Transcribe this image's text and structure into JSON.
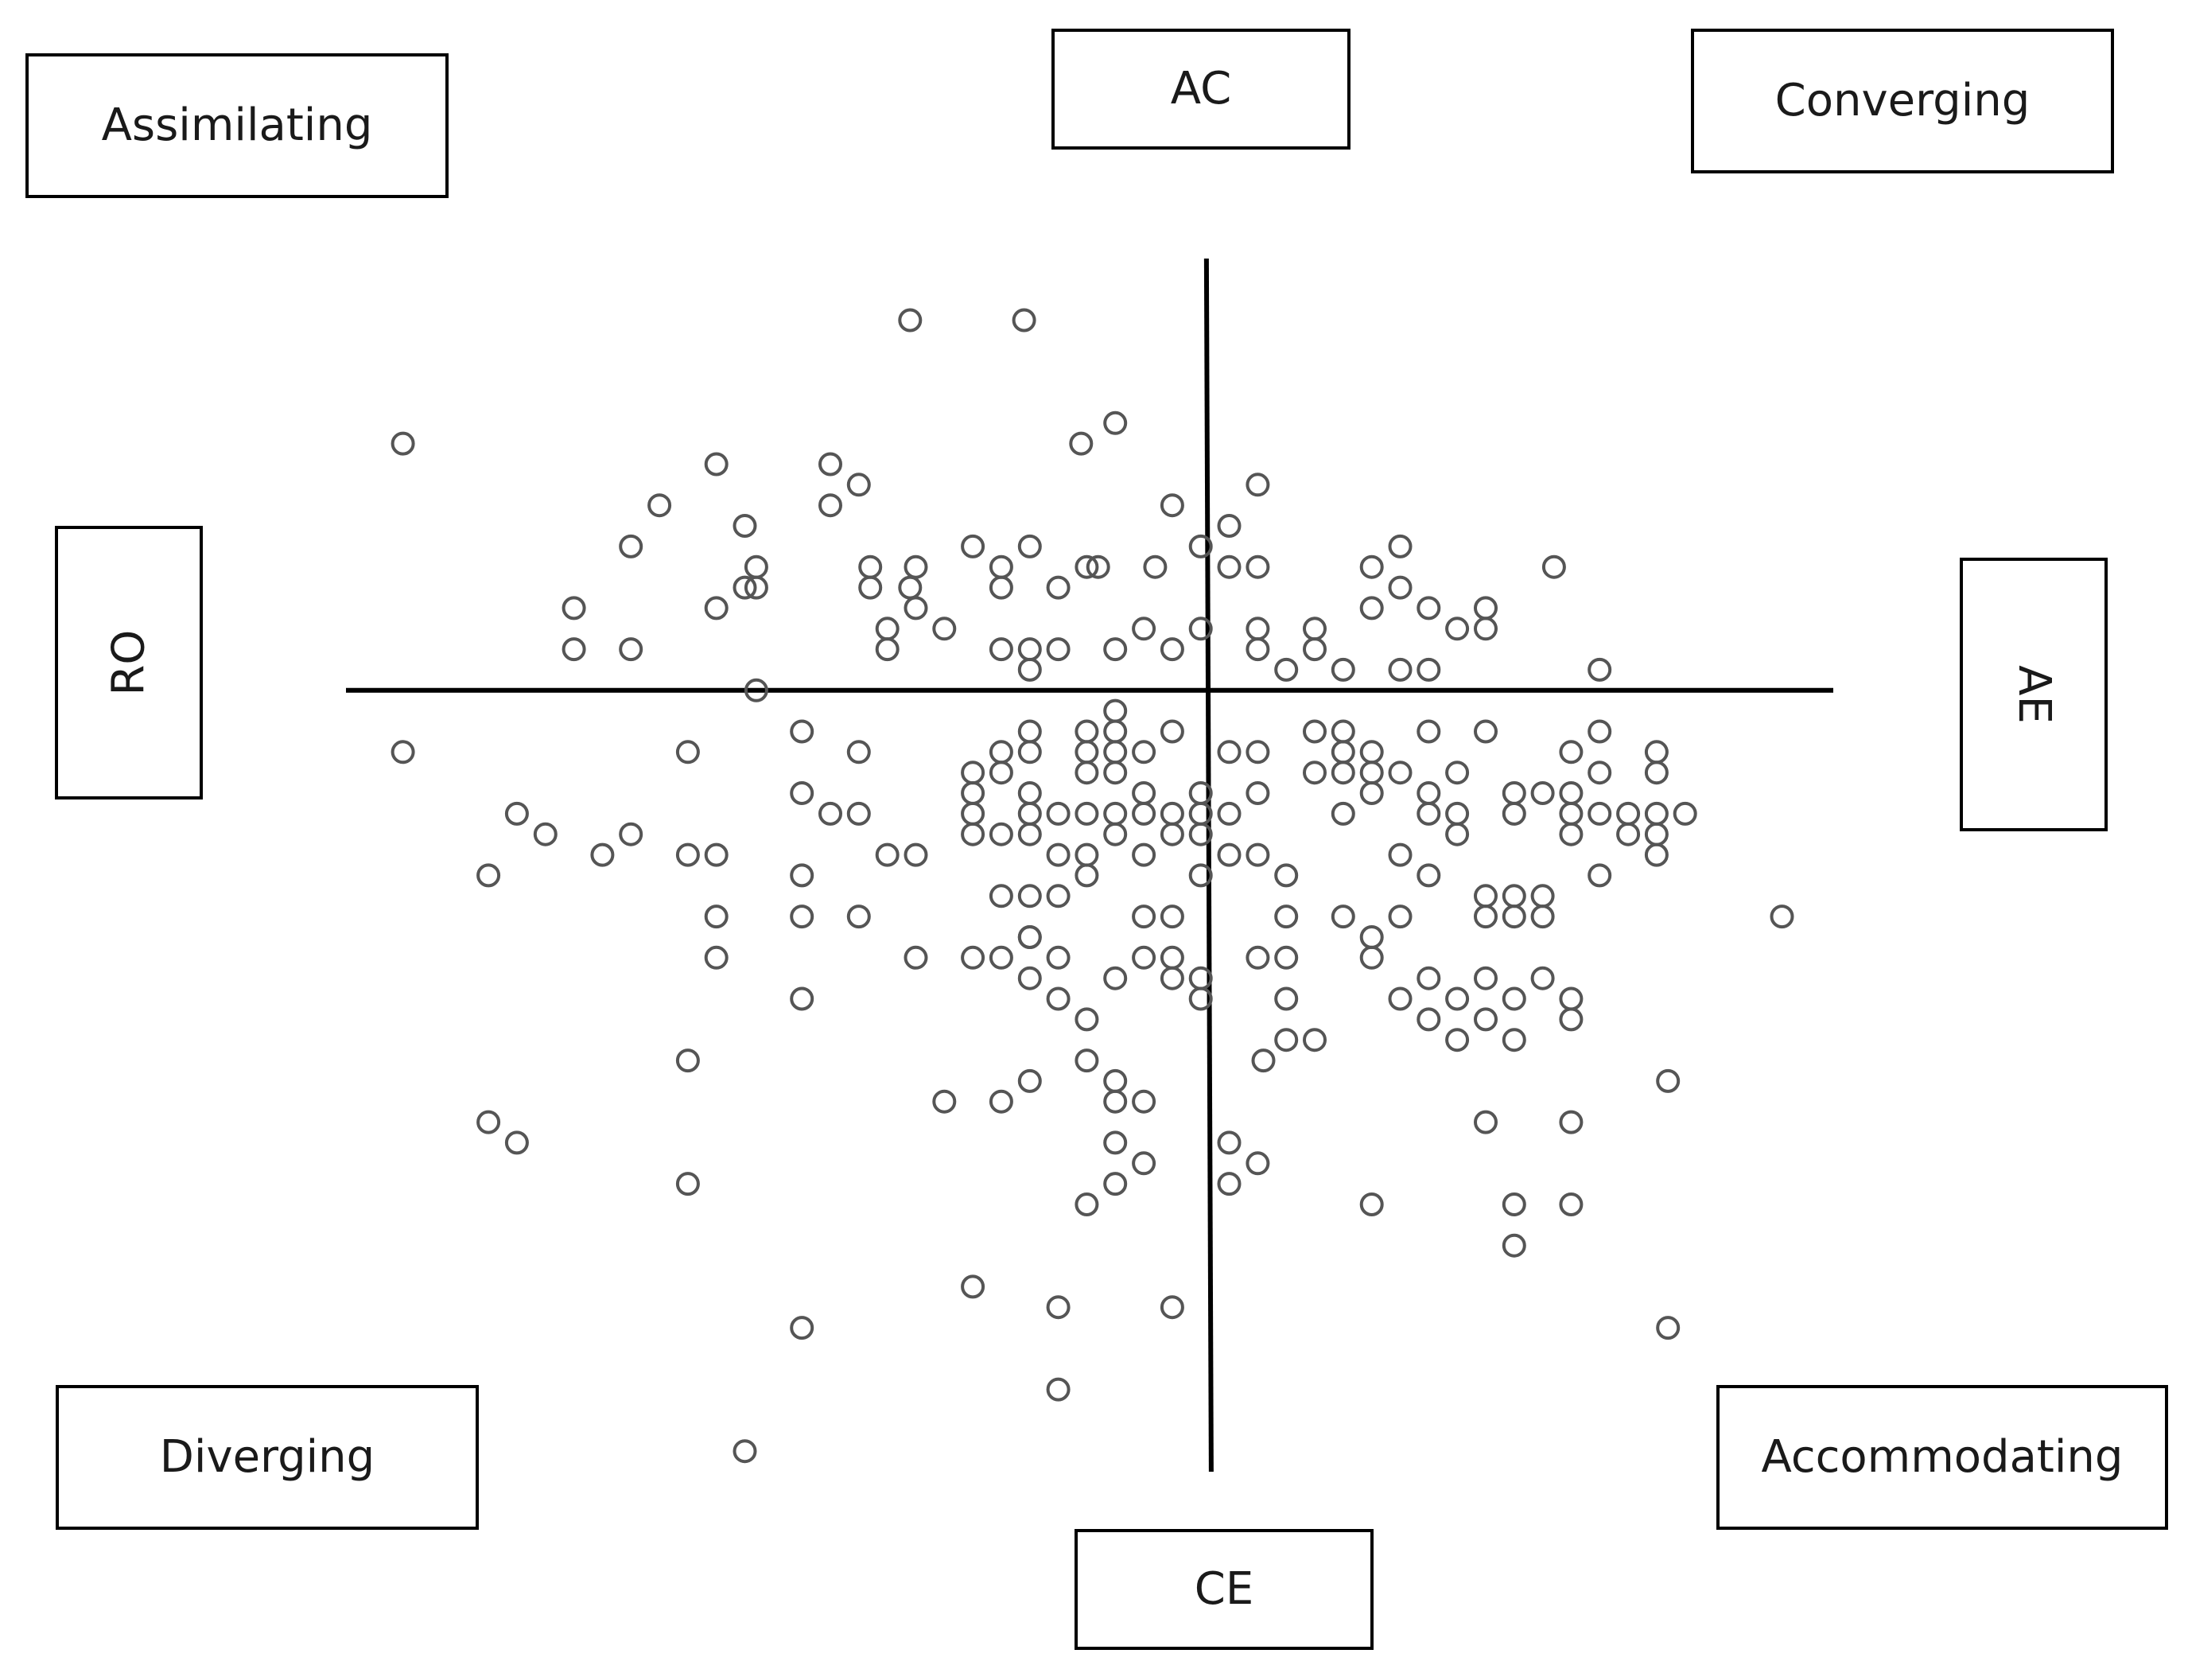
{
  "labels": {
    "ac": "AC",
    "ce": "CE",
    "ro": "RO",
    "ae": "AE",
    "assimilating": "Assimilating",
    "converging": "Converging",
    "diverging": "Diverging",
    "accommodating": "Accommodating"
  },
  "colors": {
    "axis": "#000000",
    "marker_stroke": "#555555",
    "marker_stroke_dense": "#222222",
    "text": "#1a1a1a"
  },
  "chart_data": {
    "type": "scatter",
    "title": "",
    "xlabel": "",
    "ylabel": "",
    "marker": "hollow-circle",
    "xlim": [
      -15.1,
      11
    ],
    "ylim": [
      -19,
      10.5
    ],
    "grid": false,
    "legend": "none",
    "quadrants": {
      "top-left": "Assimilating",
      "top-right": "Converging",
      "bottom-left": "Diverging",
      "bottom-right": "Accommodating"
    },
    "axis_ends": {
      "top": "AC",
      "bottom": "CE",
      "left": "RO",
      "right": "AE"
    },
    "points": [
      [
        -5.2,
        9
      ],
      [
        -3.2,
        9
      ],
      [
        -14.1,
        6
      ],
      [
        -8.6,
        5.5
      ],
      [
        -6.6,
        5.5
      ],
      [
        -2.2,
        6
      ],
      [
        -1.6,
        6.5
      ],
      [
        -0.6,
        4.5
      ],
      [
        0.9,
        5
      ],
      [
        -9.6,
        4.5
      ],
      [
        -8.1,
        4
      ],
      [
        -6.6,
        4.5
      ],
      [
        -6.1,
        5
      ],
      [
        -10.1,
        3.5
      ],
      [
        -7.9,
        3
      ],
      [
        -5.9,
        3
      ],
      [
        -5.1,
        3
      ],
      [
        -4.1,
        3.5
      ],
      [
        -3.6,
        3
      ],
      [
        -3.1,
        3.5
      ],
      [
        -1.9,
        3
      ],
      [
        -0.9,
        3
      ],
      [
        -0.1,
        3.5
      ],
      [
        0.4,
        4
      ],
      [
        0.4,
        3
      ],
      [
        -8.1,
        2.5
      ],
      [
        -7.9,
        2.5
      ],
      [
        -5.9,
        2.5
      ],
      [
        -5.2,
        2.5
      ],
      [
        -3.6,
        2.5
      ],
      [
        -2.6,
        2.5
      ],
      [
        -2.1,
        3
      ],
      [
        0.9,
        3
      ],
      [
        2.9,
        3
      ],
      [
        3.4,
        3.5
      ],
      [
        3.4,
        2.5
      ],
      [
        6.1,
        3
      ],
      [
        -11.1,
        2
      ],
      [
        -8.6,
        2
      ],
      [
        -5.1,
        2
      ],
      [
        -4.6,
        1.5
      ],
      [
        -5.6,
        1.5
      ],
      [
        1.9,
        1.5
      ],
      [
        2.9,
        2
      ],
      [
        3.9,
        2
      ],
      [
        4.4,
        1.5
      ],
      [
        4.9,
        2
      ],
      [
        4.9,
        1.5
      ],
      [
        -11.1,
        1
      ],
      [
        -10.1,
        1
      ],
      [
        -5.6,
        1
      ],
      [
        -3.6,
        1
      ],
      [
        -3.1,
        1
      ],
      [
        -2.6,
        1
      ],
      [
        -1.6,
        1
      ],
      [
        -1.1,
        1.5
      ],
      [
        -0.6,
        1
      ],
      [
        -0.1,
        1.5
      ],
      [
        0.9,
        1.5
      ],
      [
        0.9,
        1
      ],
      [
        1.4,
        0.5
      ],
      [
        1.9,
        1
      ],
      [
        2.4,
        0.5
      ],
      [
        3.4,
        0.5
      ],
      [
        3.9,
        0.5
      ],
      [
        6.9,
        0.5
      ],
      [
        -7.9,
        0
      ],
      [
        -3.1,
        0.5
      ],
      [
        -1.6,
        -0.5
      ],
      [
        -3.6,
        -1.5
      ],
      [
        -3.1,
        -1
      ],
      [
        -3.1,
        -1.5
      ],
      [
        -2.1,
        -1
      ],
      [
        -2.1,
        -1.5
      ],
      [
        -1.6,
        -1
      ],
      [
        -1.6,
        -1.5
      ],
      [
        -1.1,
        -1.5
      ],
      [
        -0.6,
        -1
      ],
      [
        0.4,
        -1.5
      ],
      [
        0.9,
        -1.5
      ],
      [
        1.9,
        -1
      ],
      [
        2.4,
        -1
      ],
      [
        2.4,
        -1.5
      ],
      [
        2.9,
        -1.5
      ],
      [
        3.9,
        -1
      ],
      [
        4.9,
        -1
      ],
      [
        6.4,
        -1.5
      ],
      [
        6.9,
        -1
      ],
      [
        -14.1,
        -1.5
      ],
      [
        -9.1,
        -1.5
      ],
      [
        -7.1,
        -1
      ],
      [
        -6.1,
        -1.5
      ],
      [
        -3.6,
        -2
      ],
      [
        -4.1,
        -2
      ],
      [
        -3.1,
        -2.5
      ],
      [
        -2.1,
        -2
      ],
      [
        -1.6,
        -2
      ],
      [
        -1.1,
        -2.5
      ],
      [
        -0.1,
        -2.5
      ],
      [
        0.9,
        -2.5
      ],
      [
        1.9,
        -2
      ],
      [
        2.4,
        -2
      ],
      [
        2.9,
        -2
      ],
      [
        3.4,
        -2
      ],
      [
        3.9,
        -2.5
      ],
      [
        4.4,
        -2
      ],
      [
        5.4,
        -2.5
      ],
      [
        5.9,
        -2.5
      ],
      [
        6.4,
        -2.5
      ],
      [
        6.9,
        -2
      ],
      [
        7.9,
        -1.5
      ],
      [
        7.9,
        -2
      ],
      [
        -12.1,
        -3
      ],
      [
        -7.1,
        -2.5
      ],
      [
        -6.1,
        -3
      ],
      [
        -6.6,
        -3
      ],
      [
        -4.1,
        -2.5
      ],
      [
        -4.1,
        -3
      ],
      [
        -3.1,
        -3
      ],
      [
        -2.6,
        -3
      ],
      [
        -2.1,
        -3
      ],
      [
        -1.6,
        -3
      ],
      [
        -1.1,
        -3
      ],
      [
        -0.6,
        -3
      ],
      [
        -0.1,
        -3
      ],
      [
        0.4,
        -3
      ],
      [
        2.9,
        -2.5
      ],
      [
        2.4,
        -3
      ],
      [
        3.9,
        -3
      ],
      [
        4.4,
        -3
      ],
      [
        5.4,
        -3
      ],
      [
        6.4,
        -3
      ],
      [
        6.9,
        -3
      ],
      [
        7.4,
        -3
      ],
      [
        7.9,
        -3
      ],
      [
        8.4,
        -3
      ],
      [
        -11.6,
        -3.5
      ],
      [
        -10.6,
        -4
      ],
      [
        -10.1,
        -3.5
      ],
      [
        -8.6,
        -4
      ],
      [
        -5.6,
        -4
      ],
      [
        -5.1,
        -4
      ],
      [
        -4.1,
        -3.5
      ],
      [
        -3.6,
        -3.5
      ],
      [
        -3.1,
        -3.5
      ],
      [
        -2.6,
        -4
      ],
      [
        -2.1,
        -4
      ],
      [
        -1.6,
        -3.5
      ],
      [
        -1.1,
        -4
      ],
      [
        -0.6,
        -3.5
      ],
      [
        -0.1,
        -3.5
      ],
      [
        0.4,
        -4
      ],
      [
        0.9,
        -4
      ],
      [
        3.4,
        -4
      ],
      [
        4.4,
        -3.5
      ],
      [
        6.4,
        -3.5
      ],
      [
        7.4,
        -3.5
      ],
      [
        7.9,
        -4
      ],
      [
        7.9,
        -3.5
      ],
      [
        -12.6,
        -4.5
      ],
      [
        -9.1,
        -4
      ],
      [
        -7.1,
        -4.5
      ],
      [
        -3.1,
        -5
      ],
      [
        -2.6,
        -5
      ],
      [
        -2.1,
        -4.5
      ],
      [
        -0.1,
        -4.5
      ],
      [
        1.4,
        -4.5
      ],
      [
        3.9,
        -4.5
      ],
      [
        4.9,
        -5
      ],
      [
        5.4,
        -5
      ],
      [
        5.9,
        -5
      ],
      [
        6.9,
        -4.5
      ],
      [
        -8.6,
        -5.5
      ],
      [
        -7.1,
        -5.5
      ],
      [
        -6.1,
        -5.5
      ],
      [
        -3.1,
        -6
      ],
      [
        -3.6,
        -5
      ],
      [
        -1.1,
        -5.5
      ],
      [
        -0.6,
        -5.5
      ],
      [
        1.4,
        -5.5
      ],
      [
        2.4,
        -5.5
      ],
      [
        2.9,
        -6
      ],
      [
        3.4,
        -5.5
      ],
      [
        4.9,
        -5.5
      ],
      [
        5.4,
        -5.5
      ],
      [
        5.9,
        -5.5
      ],
      [
        10.1,
        -5.5
      ],
      [
        -8.6,
        -6.5
      ],
      [
        -5.1,
        -6.5
      ],
      [
        -4.1,
        -6.5
      ],
      [
        -3.1,
        -6
      ],
      [
        -3.6,
        -6.5
      ],
      [
        -2.6,
        -6.5
      ],
      [
        -1.6,
        -7
      ],
      [
        -1.1,
        -6.5
      ],
      [
        -0.6,
        -6.5
      ],
      [
        -0.1,
        -7
      ],
      [
        0.9,
        -6.5
      ],
      [
        1.4,
        -6.5
      ],
      [
        2.9,
        -6.5
      ],
      [
        -7.1,
        -7.5
      ],
      [
        -3.1,
        -7
      ],
      [
        -2.6,
        -7.5
      ],
      [
        -2.1,
        -8
      ],
      [
        -0.6,
        -7
      ],
      [
        -0.1,
        -7.5
      ],
      [
        1.4,
        -7.5
      ],
      [
        3.4,
        -7.5
      ],
      [
        3.9,
        -7
      ],
      [
        4.4,
        -7.5
      ],
      [
        4.9,
        -7
      ],
      [
        5.4,
        -7.5
      ],
      [
        5.9,
        -7
      ],
      [
        6.4,
        -7.5
      ],
      [
        6.4,
        -8
      ],
      [
        1.9,
        -8.5
      ],
      [
        1.4,
        -8.5
      ],
      [
        3.9,
        -8
      ],
      [
        4.4,
        -8.5
      ],
      [
        4.9,
        -8
      ],
      [
        5.4,
        -8.5
      ],
      [
        1.0,
        -9
      ],
      [
        -9.1,
        -9
      ],
      [
        -4.6,
        -10
      ],
      [
        -3.6,
        -10
      ],
      [
        -3.1,
        -9.5
      ],
      [
        -2.1,
        -9
      ],
      [
        -1.6,
        -9.5
      ],
      [
        -1.1,
        -10
      ],
      [
        -1.6,
        -10
      ],
      [
        8.1,
        -9.5
      ],
      [
        -12.6,
        -10.5
      ],
      [
        -12.1,
        -11
      ],
      [
        -9.1,
        -12
      ],
      [
        -1.6,
        -11
      ],
      [
        -1.1,
        -11.5
      ],
      [
        -1.6,
        -12
      ],
      [
        -2.1,
        -12.5
      ],
      [
        0.4,
        -11
      ],
      [
        0.4,
        -12
      ],
      [
        0.9,
        -11.5
      ],
      [
        2.9,
        -12.5
      ],
      [
        4.9,
        -10.5
      ],
      [
        6.4,
        -10.5
      ],
      [
        6.4,
        -12.5
      ],
      [
        5.4,
        -12.5
      ],
      [
        5.4,
        -13.5
      ],
      [
        -4.1,
        -14.5
      ],
      [
        -2.6,
        -15
      ],
      [
        -0.6,
        -15
      ],
      [
        -7.1,
        -15.5
      ],
      [
        8.1,
        -15.5
      ],
      [
        -2.6,
        -17
      ],
      [
        -8.1,
        -18.5
      ]
    ]
  }
}
